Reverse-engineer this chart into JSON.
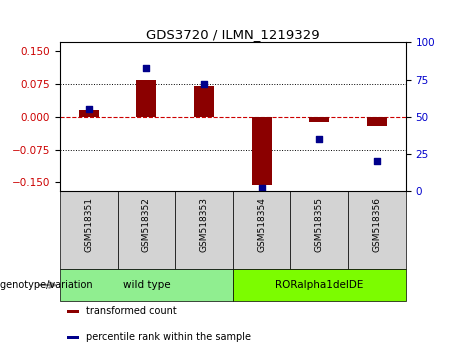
{
  "title": "GDS3720 / ILMN_1219329",
  "samples": [
    "GSM518351",
    "GSM518352",
    "GSM518353",
    "GSM518354",
    "GSM518355",
    "GSM518356"
  ],
  "transformed_count": [
    0.015,
    0.085,
    0.07,
    -0.155,
    -0.012,
    -0.02
  ],
  "percentile_rank_pct": [
    55,
    83,
    72,
    2,
    35,
    20
  ],
  "groups": [
    {
      "label": "wild type",
      "span": [
        0,
        2
      ],
      "color": "#90ee90"
    },
    {
      "label": "RORalpha1delDE",
      "span": [
        3,
        5
      ],
      "color": "#7cfc00"
    }
  ],
  "ylim_left": [
    -0.17,
    0.17
  ],
  "ylim_right": [
    0,
    100
  ],
  "yticks_left": [
    -0.15,
    -0.075,
    0,
    0.075,
    0.15
  ],
  "yticks_right": [
    0,
    25,
    50,
    75,
    100
  ],
  "bar_color": "#8b0000",
  "dot_color": "#00008b",
  "zero_line_color": "#cc0000",
  "grid_color": "black",
  "left_axis_color": "#cc0000",
  "right_axis_color": "#0000cc",
  "group_label_text": "genotype/variation",
  "legend_items": [
    {
      "label": "transformed count",
      "color": "#8b0000"
    },
    {
      "label": "percentile rank within the sample",
      "color": "#00008b"
    }
  ],
  "sample_box_color": "#d3d3d3",
  "bar_width": 0.35
}
